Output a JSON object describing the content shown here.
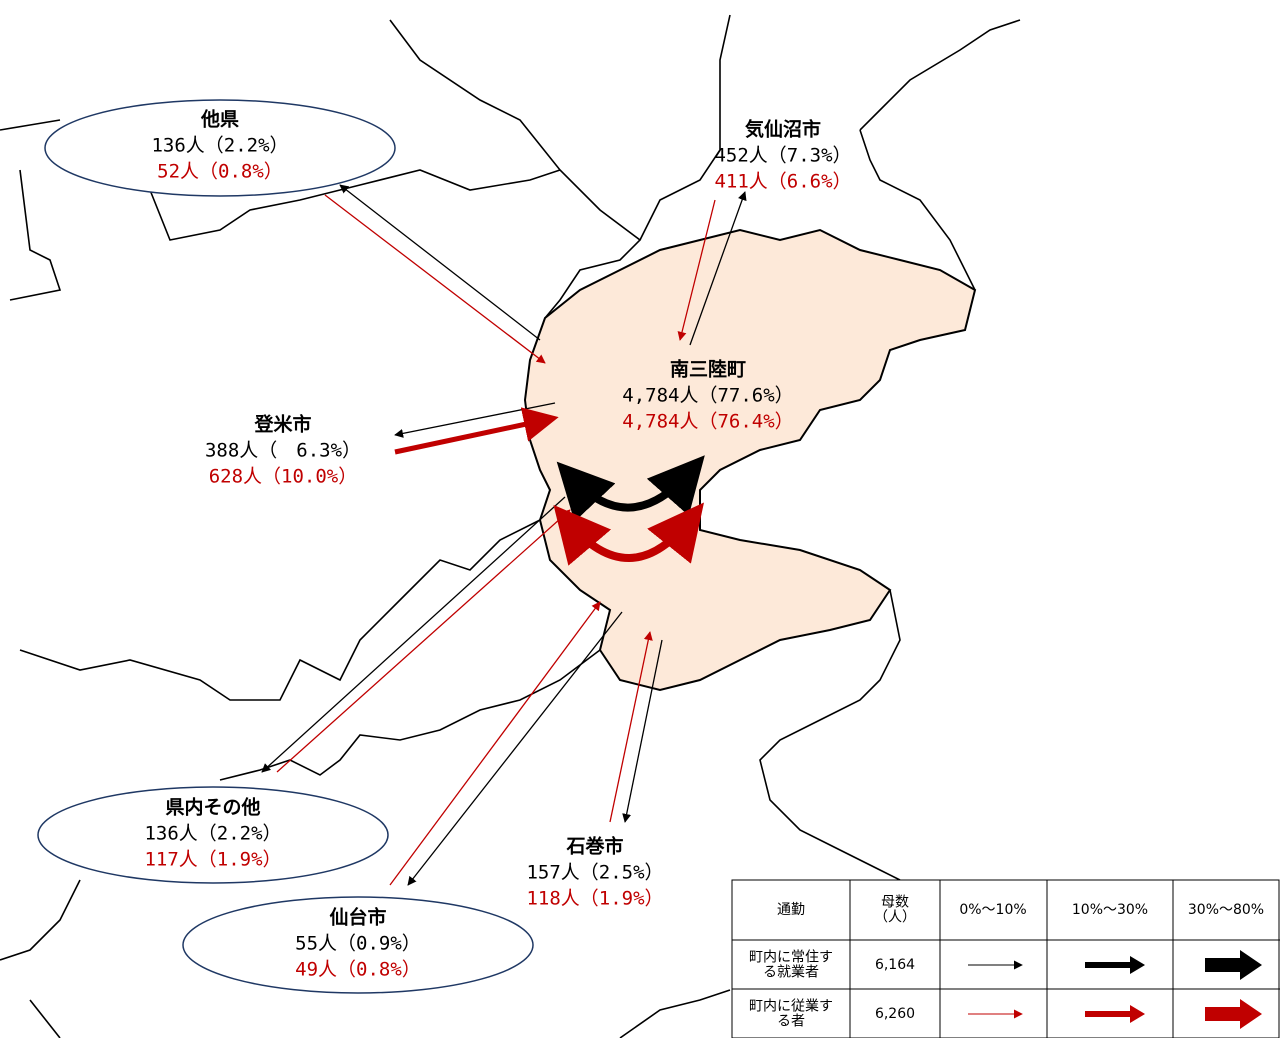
{
  "places": [
    {
      "name": "他県",
      "residents": "136人（2.2%）",
      "workers": "52人（0.8%）"
    },
    {
      "name": "気仙沼市",
      "residents": "452人（7.3%）",
      "workers": "411人（6.6%）"
    },
    {
      "name": "南三陸町",
      "residents": "4,784人（77.6%）",
      "workers": "4,784人（76.4%）"
    },
    {
      "name": "登米市",
      "residents": "388人（　6.3%）",
      "workers": "628人（10.0%）"
    },
    {
      "name": "県内その他",
      "residents": "136人（2.2%）",
      "workers": "117人（1.9%）"
    },
    {
      "name": "石巻市",
      "residents": "157人（2.5%）",
      "workers": "118人（1.9%）"
    },
    {
      "name": "仙台市",
      "residents": "55人（0.9%）",
      "workers": "49人（0.8%）"
    }
  ],
  "legend": {
    "headers": [
      "通勤",
      "母数（人）",
      "0%～10%",
      "10%～30%",
      "30%～80%"
    ],
    "rows": [
      {
        "label": "町内に常住する就業者",
        "count": "6,164"
      },
      {
        "label": "町内に従業する者",
        "count": "6,260"
      }
    ]
  }
}
